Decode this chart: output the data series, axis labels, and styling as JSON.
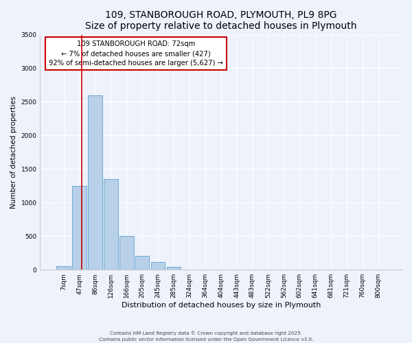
{
  "title": "109, STANBOROUGH ROAD, PLYMOUTH, PL9 8PG",
  "subtitle": "Size of property relative to detached houses in Plymouth",
  "xlabel": "Distribution of detached houses by size in Plymouth",
  "ylabel": "Number of detached properties",
  "bar_labels": [
    "7sqm",
    "47sqm",
    "86sqm",
    "126sqm",
    "166sqm",
    "205sqm",
    "245sqm",
    "285sqm",
    "324sqm",
    "364sqm",
    "404sqm",
    "443sqm",
    "483sqm",
    "522sqm",
    "562sqm",
    "602sqm",
    "641sqm",
    "681sqm",
    "721sqm",
    "760sqm",
    "800sqm"
  ],
  "bar_values": [
    50,
    1250,
    2600,
    1350,
    500,
    205,
    110,
    40,
    5,
    0,
    0,
    0,
    0,
    0,
    0,
    0,
    0,
    0,
    0,
    0,
    0
  ],
  "bar_color": "#b8d0e8",
  "bar_edge_color": "#6aaad4",
  "annotation_line1": "109 STANBOROUGH ROAD: 72sqm",
  "annotation_line2": "← 7% of detached houses are smaller (427)",
  "annotation_line3": "92% of semi-detached houses are larger (5,627) →",
  "annotation_box_color": "#ffffff",
  "annotation_box_edge": "#cc0000",
  "vline_color": "#cc0000",
  "ylim": [
    0,
    3500
  ],
  "yticks": [
    0,
    500,
    1000,
    1500,
    2000,
    2500,
    3000,
    3500
  ],
  "bg_color": "#eef2fb",
  "footer1": "Contains HM Land Registry data © Crown copyright and database right 2025.",
  "footer2": "Contains public sector information licensed under the Open Government Licence v3.0.",
  "title_fontsize": 10,
  "subtitle_fontsize": 9
}
